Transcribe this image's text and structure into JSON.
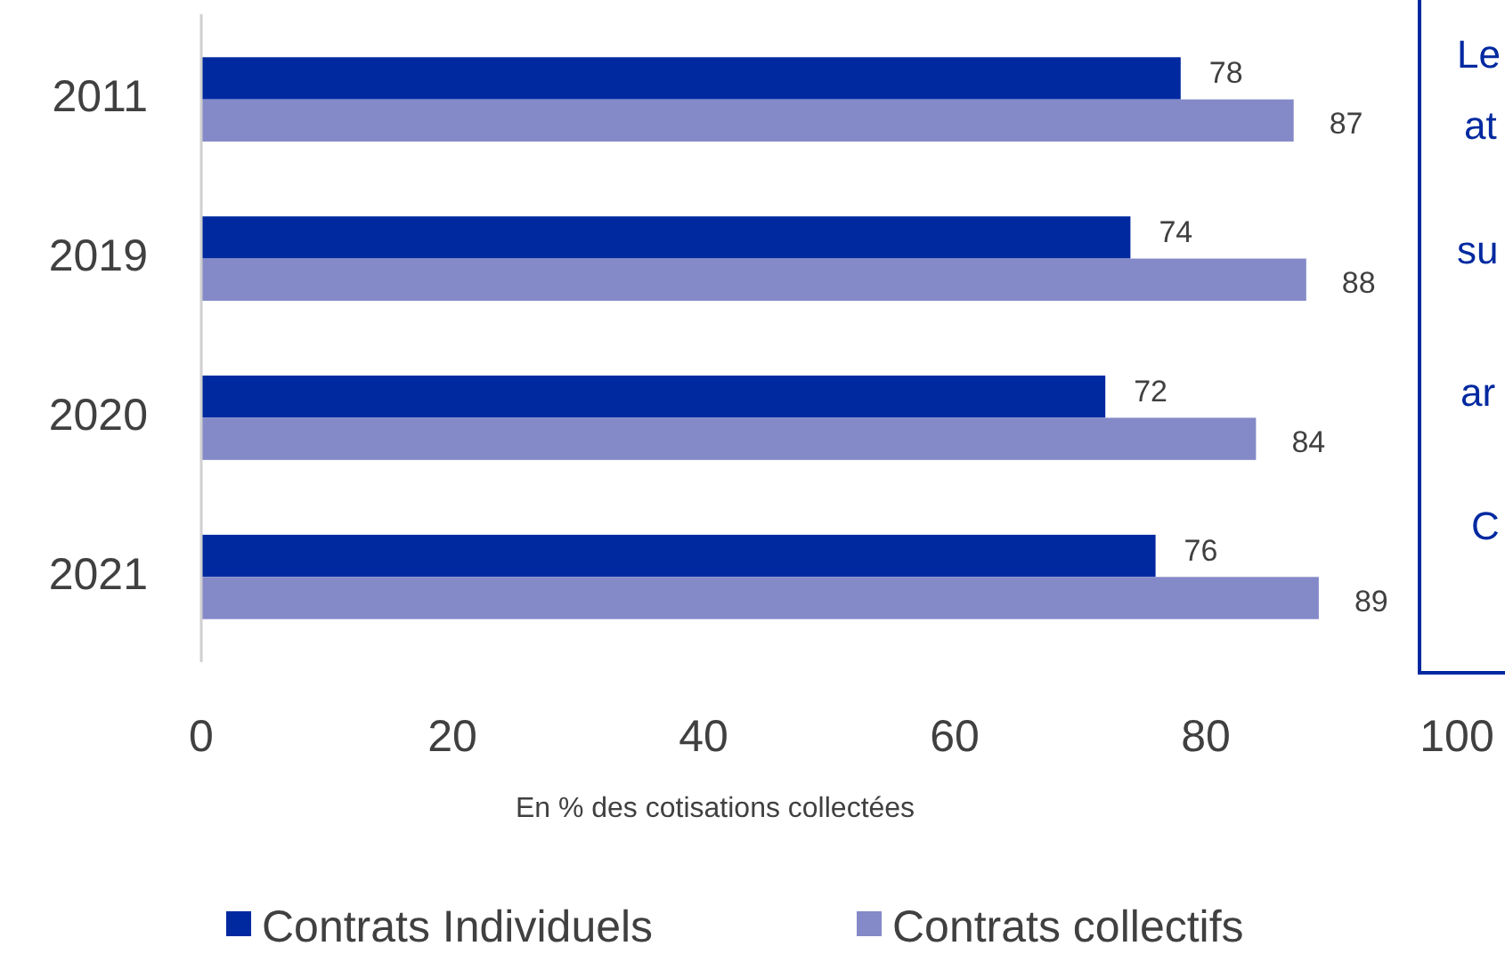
{
  "chart_data": {
    "type": "bar",
    "orientation": "horizontal",
    "xlabel": "En % des cotisations collectées",
    "categories": [
      "2011",
      "2019",
      "2020",
      "2021"
    ],
    "series": [
      {
        "name": "Contrats Individuels",
        "color": "#0029a0",
        "values": [
          78,
          74,
          72,
          76
        ]
      },
      {
        "name": "Contrats collectifs",
        "color": "#8489c8",
        "values": [
          87,
          88,
          84,
          89
        ]
      }
    ],
    "xlim": [
      0,
      100
    ],
    "xticks": [
      0,
      20,
      40,
      60,
      80,
      100
    ],
    "data_labels": true,
    "legend": "bottom",
    "grid": false,
    "annotations": [
      "Le",
      "at",
      "su",
      "ar",
      "C"
    ]
  }
}
